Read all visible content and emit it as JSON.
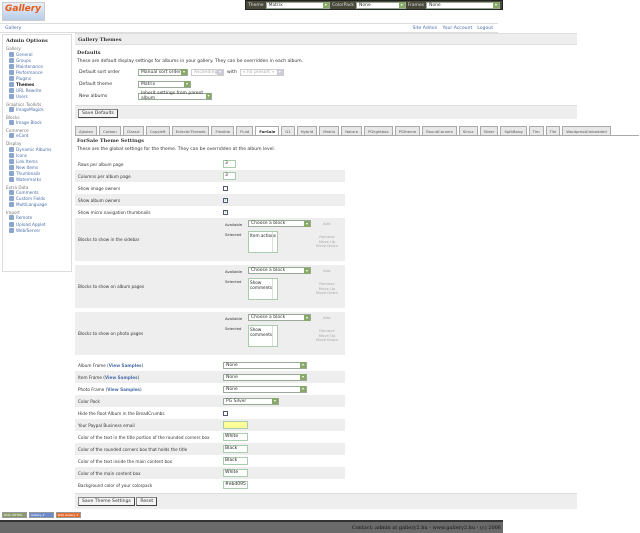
{
  "topbar": {
    "theme_label": "Theme",
    "theme_value": "Matrix",
    "colorpack_label": "ColorPack",
    "colorpack_value": "None",
    "frames_label": "Frames",
    "frames_value": "None"
  },
  "logo": {
    "text": "Gallery"
  },
  "breadcrumb": {
    "root": "Gallery",
    "links": [
      "Site Admin",
      "Your Account",
      "Logout"
    ]
  },
  "sidebar": {
    "title": "Admin Options",
    "groups": [
      {
        "label": "Gallery",
        "items": [
          "General",
          "Groups",
          "Maintenance",
          "Performance",
          "Plugins",
          "Themes",
          "URL Rewrite",
          "Users"
        ]
      },
      {
        "label": "Graphics Toolkits",
        "items": [
          "ImageMagick"
        ]
      },
      {
        "label": "Blocks",
        "items": [
          "Image Block"
        ]
      },
      {
        "label": "Commerce",
        "items": [
          "eCard"
        ]
      },
      {
        "label": "Display",
        "items": [
          "Dynamic Albums",
          "Icons",
          "Link Items",
          "New Items",
          "Thumbnails",
          "Watermarks"
        ]
      },
      {
        "label": "Extra Data",
        "items": [
          "Comments",
          "Custom Fields",
          "MultiLanguage"
        ]
      },
      {
        "label": "Import",
        "items": [
          "Remote",
          "Upload Applet",
          "Web/Server"
        ]
      }
    ],
    "current": "Themes"
  },
  "main": {
    "title": "Gallery Themes",
    "defaults_heading": "Defaults",
    "defaults_desc": "These are default display settings for albums in your gallery. They can be overridden in each album.",
    "sort_label": "Default sort order",
    "sort_value": "Manual sort order",
    "sort_dir": "Ascending",
    "with_label": "with",
    "presort": "« no presort »",
    "theme_label": "Default theme",
    "theme_value": "Matrix",
    "new_label": "New albums",
    "new_value": "Inherit settings from parent album",
    "save_defaults": "Save Defaults"
  },
  "tabs": [
    "Ajaxian",
    "Carbon",
    "Classic",
    "Copyleft",
    "EclecticThreads",
    "Flexible",
    "Fluid",
    "ForSale",
    "G1",
    "Hybrid",
    "Matrix",
    "Nature",
    "PGlightbox",
    "PGtheme",
    "RoundCorners",
    "Siriux",
    "Slider",
    "SplitBang",
    "Tim",
    "Tile",
    "WordpressEmbedded"
  ],
  "active_tab": "ForSale",
  "theme": {
    "heading": "ForSale Theme Settings",
    "desc": "These are the global settings for the theme. They can be overridden at the album level.",
    "rows_label": "Rows per album page",
    "rows_value": "3",
    "cols_label": "Columns per album page",
    "cols_value": "3",
    "img_owners_label": "Show image owners",
    "img_owners": false,
    "album_owners_label": "Show album owners",
    "album_owners": true,
    "micro_label": "Show micro navigation thumbnails",
    "micro": true,
    "blocks": [
      {
        "label": "Blocks to show in the sidebar",
        "selected": "Item actions"
      },
      {
        "label": "Blocks to show on album pages",
        "selected": "Show comments"
      },
      {
        "label": "Blocks to show on photo pages",
        "selected": "Show comments"
      }
    ],
    "available_label": "Available",
    "selected_label": "Selected",
    "choose": "Choose a block",
    "add": "Add",
    "remove": "Remove",
    "move_up": "Move Up",
    "move_down": "Move Down",
    "view_samples": "View Samples",
    "album_frame_label": "Album Frame",
    "album_frame": "None",
    "item_frame_label": "Item Frame",
    "item_frame": "None",
    "photo_frame_label": "Photo Frame",
    "photo_frame": "None",
    "colorpack_label": "Color Pack",
    "colorpack": "PG Silver",
    "hide_root_label": "Hide the Root Album in the BreadCrumbs",
    "hide_root": false,
    "paypal_label": "Your Paypal Business email",
    "paypal": "",
    "c1_label": "Color of the text in the title portion of the rounded corners box",
    "c1": "White",
    "c2_label": "Color of the rounded corners box that holds the title",
    "c2": "Black",
    "c3_label": "Color of the text inside the main content box",
    "c3": "Black",
    "c4_label": "Color of the main content box",
    "c4": "White",
    "c5_label": "Background color of your colorpack",
    "c5": "#ebd095",
    "save": "Save Theme Settings",
    "reset": "Reset"
  },
  "badges": [
    "W3C XHTML 1.0",
    "Gallery 2",
    "RSS Gallery 2"
  ],
  "footer": "Contact: admin at gallery2.hu - www.gallery2.hu - (c) 2006"
}
